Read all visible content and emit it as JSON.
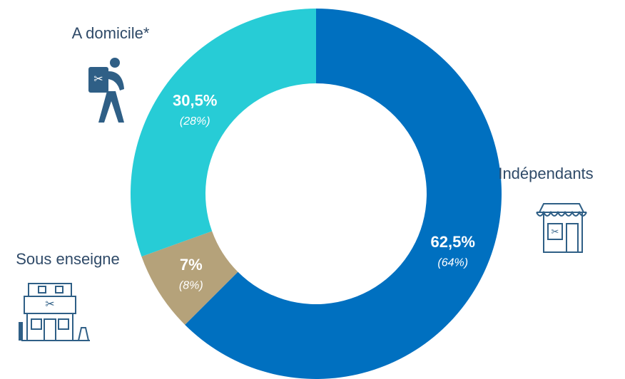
{
  "chart_data": {
    "type": "donut",
    "categories": [
      "Indépendants",
      "Sous enseigne",
      "A domicile*"
    ],
    "values": [
      62.5,
      7,
      30.5
    ],
    "value_labels": [
      "62,5%",
      "7%",
      "30,5%"
    ],
    "secondary_values": [
      64,
      8,
      28
    ],
    "secondary_value_labels": [
      "(64%)",
      "(8%)",
      "(28%)"
    ],
    "colors": [
      "#0070c0",
      "#b5a27a",
      "#27ccd6"
    ]
  }
}
